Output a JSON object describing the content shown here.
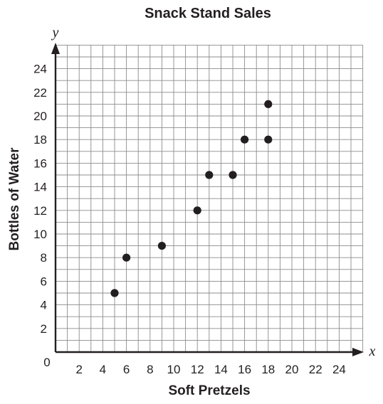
{
  "chart_data": {
    "type": "scatter",
    "title": "Snack Stand Sales",
    "xlabel": "Soft Pretzels",
    "ylabel": "Bottles of Water",
    "x_var": "x",
    "y_var": "y",
    "origin_label": "0",
    "xlim": [
      0,
      26
    ],
    "ylim": [
      0,
      26
    ],
    "grid": true,
    "x_ticks": [
      "2",
      "4",
      "6",
      "8",
      "10",
      "12",
      "14",
      "16",
      "18",
      "20",
      "22",
      "24"
    ],
    "y_ticks": [
      "2",
      "4",
      "6",
      "8",
      "10",
      "12",
      "14",
      "16",
      "18",
      "20",
      "22",
      "24"
    ],
    "points": [
      {
        "x": 5,
        "y": 5
      },
      {
        "x": 6,
        "y": 8
      },
      {
        "x": 9,
        "y": 9
      },
      {
        "x": 12,
        "y": 12
      },
      {
        "x": 13,
        "y": 15
      },
      {
        "x": 15,
        "y": 15
      },
      {
        "x": 16,
        "y": 18
      },
      {
        "x": 18,
        "y": 18
      },
      {
        "x": 18,
        "y": 21
      }
    ],
    "point_color": "#231f20"
  }
}
